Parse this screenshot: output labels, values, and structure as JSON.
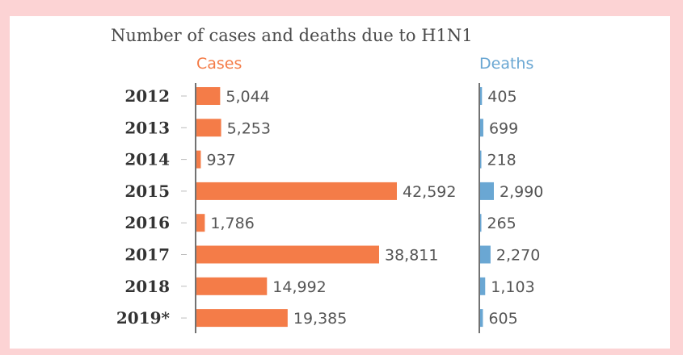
{
  "chart_data": {
    "type": "bar",
    "title": "Number of cases and deaths due to H1N1",
    "categories": [
      "2012",
      "2013",
      "2014",
      "2015",
      "2016",
      "2017",
      "2018",
      "2019*"
    ],
    "series": [
      {
        "name": "Cases",
        "color": "#f47c48",
        "values": [
          5044,
          5253,
          937,
          42592,
          1786,
          38811,
          14992,
          19385
        ],
        "labels": [
          "5,044",
          "5,253",
          "937",
          "42,592",
          "1,786",
          "38,811",
          "14,992",
          "19,385"
        ]
      },
      {
        "name": "Deaths",
        "color": "#6aa7d3",
        "values": [
          405,
          699,
          218,
          2990,
          265,
          2270,
          1103,
          605
        ],
        "labels": [
          "405",
          "699",
          "218",
          "2,990",
          "265",
          "2,270",
          "1,103",
          "605"
        ]
      }
    ],
    "orientation": "horizontal",
    "grid": false
  }
}
